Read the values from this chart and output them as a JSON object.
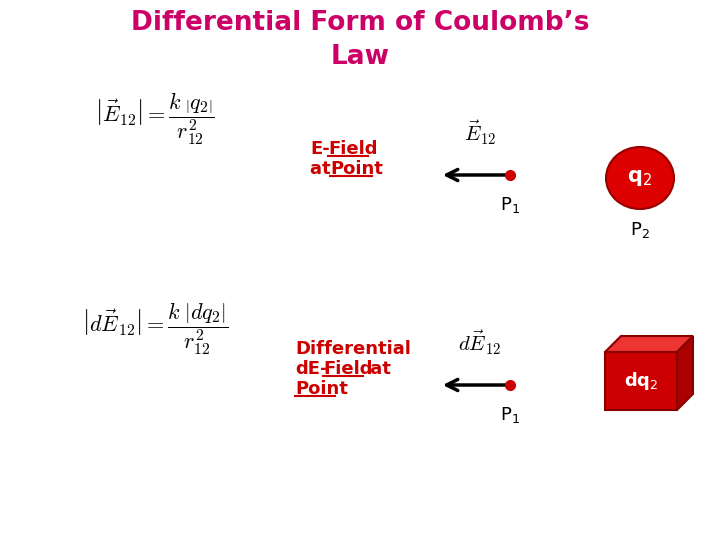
{
  "title_line1": "Differential Form of Coulomb’s",
  "title_line2": "Law",
  "title_color": "#cc0066",
  "bg_color": "#ffffff",
  "label_color": "#cc0000",
  "black_color": "#000000",
  "eq1_latex": "$\\left|\\vec{E}_{12}\\right| = \\dfrac{k\\;\\left|q_2\\right|}{r_{12}^2}$",
  "eq2_latex": "$\\left|d\\vec{E}_{12}\\right| = \\dfrac{k\\;\\left|dq_2\\right|}{r_{12}^2}$",
  "vec1_latex": "$\\vec{E}_{12}$",
  "vec2_latex": "$d\\vec{E}_{12}$",
  "label1_line1": "E-Field",
  "label1_line2": "at Point",
  "label2_line1": "Differential",
  "label2_line2": "dE-Field at",
  "label2_line3": "Point",
  "P1_label": "P$_1$",
  "P2_label": "P$_2$",
  "q2_label": "q$_2$",
  "dq2_label": "dq$_2$"
}
